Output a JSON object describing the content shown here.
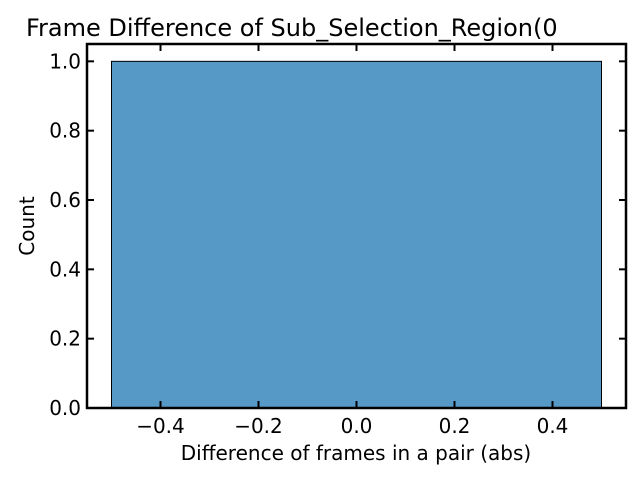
{
  "chart_data": {
    "type": "bar",
    "title": "Frame Difference of Sub_Selection_Region(0",
    "xlabel": "Difference of frames in a pair (abs)",
    "ylabel": "Count",
    "bins": [
      {
        "x_start": -0.5,
        "x_end": 0.5,
        "count": 1.0
      }
    ],
    "xlim": [
      -0.55,
      0.55
    ],
    "ylim": [
      0.0,
      1.05
    ],
    "x_ticks": [
      "−0.4",
      "−0.2",
      "0.0",
      "0.2",
      "0.4"
    ],
    "x_tick_values": [
      -0.4,
      -0.2,
      0.0,
      0.2,
      0.4
    ],
    "y_ticks": [
      "0.0",
      "0.2",
      "0.4",
      "0.6",
      "0.8",
      "1.0"
    ],
    "y_tick_values": [
      0.0,
      0.2,
      0.4,
      0.6,
      0.8,
      1.0
    ],
    "bar_color": "#5699c6",
    "bar_edge_color": "#000000",
    "grid": false,
    "tick_direction": "in",
    "legend": "none"
  }
}
